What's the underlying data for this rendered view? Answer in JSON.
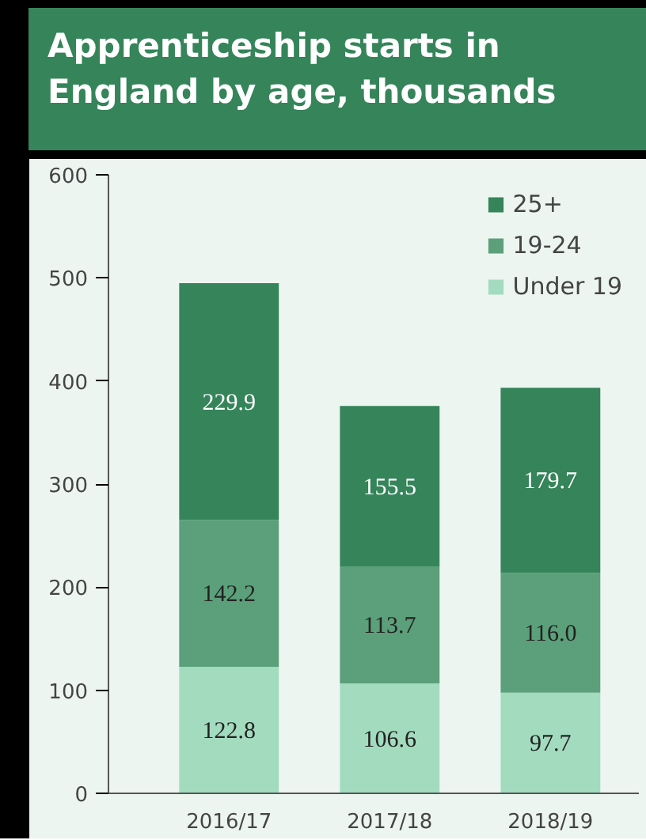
{
  "chart_data": {
    "type": "bar",
    "title": "Apprenticeship starts in England by age, thousands",
    "categories": [
      "2016/17",
      "2017/18",
      "2018/19"
    ],
    "stacked": true,
    "series": [
      {
        "name": "Under 19",
        "color": "#a3dbbf",
        "values": [
          122.8,
          106.6,
          97.7
        ],
        "value_labels": [
          "122.8",
          "106.6",
          "97.7"
        ]
      },
      {
        "name": "19-24",
        "color": "#5ba07a",
        "values": [
          142.2,
          113.7,
          116.0
        ],
        "value_labels": [
          "142.2",
          "113.7",
          "116.0"
        ]
      },
      {
        "name": "25+",
        "color": "#35845a",
        "values": [
          229.9,
          155.5,
          179.7
        ],
        "value_labels": [
          "229.9",
          "155.5",
          "179.7"
        ]
      }
    ],
    "ylim": [
      0,
      600
    ],
    "yticks": [
      0,
      100,
      200,
      300,
      400,
      500,
      600
    ],
    "grid": false,
    "legend": "top right"
  }
}
